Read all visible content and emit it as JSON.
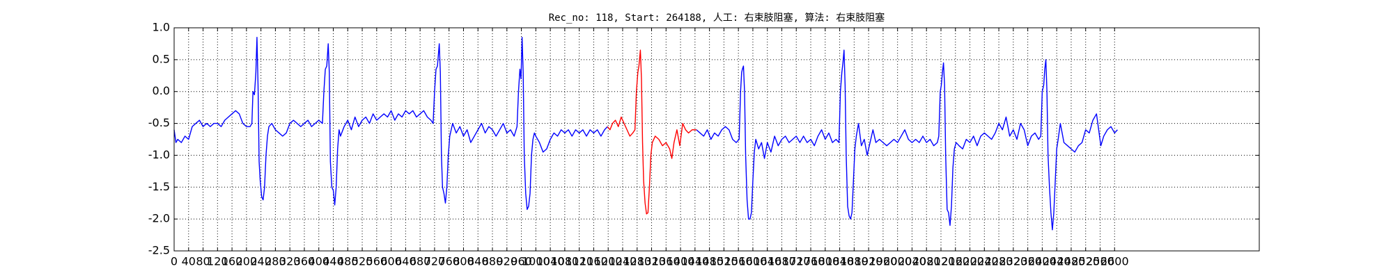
{
  "chart_data": {
    "type": "line",
    "title": "Rec_no: 118, Start: 264188, 人工: 右束肢阻塞, 算法: 右束肢阻塞",
    "xlim": [
      0,
      3000
    ],
    "xticks": [
      0,
      40,
      80,
      120,
      160,
      200,
      240,
      280,
      320,
      360,
      400,
      440,
      480,
      520,
      560,
      600,
      640,
      680,
      720,
      760,
      800,
      840,
      880,
      920,
      960,
      1000,
      1040,
      1080,
      1120,
      1160,
      1200,
      1240,
      1280,
      1320,
      1360,
      1400,
      1440,
      1480,
      1520,
      1560,
      1600,
      1640,
      1680,
      1720,
      1760,
      1800,
      1840,
      1880,
      1920,
      1960,
      2000,
      2040,
      2080,
      2120,
      2160,
      2200,
      2240,
      2280,
      2320,
      2360,
      2400,
      2440,
      2480,
      2520,
      2560,
      2600
    ],
    "ylim": [
      -2.5,
      1.0
    ],
    "yticks": [
      {
        "value": -2.5,
        "label": "-2.5"
      },
      {
        "value": -2,
        "label": "-2.0"
      },
      {
        "value": -1.5,
        "label": "-1.5"
      },
      {
        "value": -1,
        "label": "-1.0"
      },
      {
        "value": -0.5,
        "label": "-0.5"
      },
      {
        "value": 0,
        "label": "0.0"
      },
      {
        "value": 0.5,
        "label": "0.5"
      },
      {
        "value": 1,
        "label": "1.0"
      }
    ],
    "grid": true,
    "series": [
      {
        "color": "#0000ff",
        "x": [
          0,
          5,
          10,
          20,
          30,
          40,
          50,
          60,
          70,
          80,
          90,
          100,
          110,
          120,
          130,
          140,
          150,
          160,
          170,
          180,
          190,
          200,
          210,
          215,
          218,
          222,
          226,
          229,
          232,
          235,
          238,
          242,
          246,
          250,
          254,
          258,
          262,
          270,
          280,
          290,
          300,
          310,
          320,
          330,
          340,
          350,
          360,
          370,
          380,
          390,
          400,
          410,
          414,
          418,
          422,
          426,
          429,
          432,
          436,
          440,
          444,
          448,
          452,
          456,
          460,
          470,
          480,
          490,
          500,
          510,
          520,
          530,
          540,
          550,
          560,
          570,
          580,
          590,
          600,
          610,
          620,
          630,
          640,
          650,
          660,
          670,
          680,
          690,
          700,
          710,
          716,
          720,
          724,
          728,
          733,
          736,
          739,
          742,
          746,
          750,
          754,
          758,
          762,
          766,
          770,
          780,
          790,
          800,
          810,
          820,
          830,
          840,
          850,
          860,
          870,
          880,
          890,
          900,
          910,
          920,
          930,
          940,
          948,
          952,
          956,
          959,
          962,
          965,
          968,
          972,
          976,
          980,
          984,
          988,
          992,
          996,
          1000,
          1010,
          1020,
          1030,
          1040,
          1050,
          1060,
          1070,
          1080,
          1090,
          1100,
          1110,
          1120,
          1130,
          1140,
          1150,
          1160,
          1170,
          1180,
          1190,
          1198,
          1300,
          1444,
          1454,
          1464,
          1474,
          1484,
          1494,
          1504,
          1514,
          1524,
          1534,
          1544,
          1554,
          1562,
          1566,
          1569,
          1571,
          1574,
          1577,
          1580,
          1584,
          1588,
          1592,
          1596,
          1600,
          1604,
          1608,
          1616,
          1624,
          1632,
          1640,
          1650,
          1660,
          1670,
          1680,
          1690,
          1700,
          1710,
          1720,
          1730,
          1740,
          1750,
          1760,
          1770,
          1780,
          1790,
          1800,
          1810,
          1820,
          1830,
          1838,
          1842,
          1846,
          1849,
          1852,
          1855,
          1858,
          1862,
          1866,
          1870,
          1874,
          1878,
          1882,
          1886,
          1892,
          1900,
          1908,
          1916,
          1924,
          1932,
          1940,
          1950,
          1960,
          1970,
          1980,
          1990,
          2000,
          2010,
          2020,
          2030,
          2040,
          2050,
          2060,
          2070,
          2080,
          2090,
          2100,
          2110,
          2114,
          2118,
          2121,
          2124,
          2127,
          2130,
          2133,
          2137,
          2141,
          2145,
          2149,
          2153,
          2157,
          2162,
          2170,
          2180,
          2190,
          2200,
          2210,
          2220,
          2230,
          2240,
          2250,
          2260,
          2270,
          2280,
          2290,
          2300,
          2310,
          2320,
          2330,
          2340,
          2350,
          2360,
          2370,
          2380,
          2390,
          2396,
          2400,
          2404,
          2407,
          2410,
          2413,
          2416,
          2420,
          2424,
          2428,
          2432,
          2436,
          2440,
          2444,
          2450,
          2460,
          2470,
          2480,
          2490,
          2500,
          2510,
          2520,
          2530,
          2540,
          2550,
          2556,
          2562,
          2570,
          2580,
          2590,
          2600,
          2608
        ],
        "values": [
          -0.6,
          -0.8,
          -0.75,
          -0.8,
          -0.7,
          -0.75,
          -0.55,
          -0.5,
          -0.45,
          -0.55,
          -0.5,
          -0.55,
          -0.5,
          -0.5,
          -0.55,
          -0.45,
          -0.4,
          -0.35,
          -0.3,
          -0.35,
          -0.5,
          -0.55,
          -0.55,
          -0.5,
          0.0,
          -0.05,
          0.3,
          0.85,
          0.1,
          -1.1,
          -1.4,
          -1.65,
          -1.7,
          -1.5,
          -1.0,
          -0.7,
          -0.55,
          -0.5,
          -0.6,
          -0.65,
          -0.7,
          -0.65,
          -0.5,
          -0.45,
          -0.5,
          -0.55,
          -0.5,
          -0.45,
          -0.55,
          -0.5,
          -0.45,
          -0.5,
          0.0,
          0.35,
          0.4,
          0.75,
          0.3,
          -1.1,
          -1.5,
          -1.55,
          -1.78,
          -1.5,
          -0.9,
          -0.6,
          -0.7,
          -0.55,
          -0.45,
          -0.6,
          -0.4,
          -0.55,
          -0.45,
          -0.4,
          -0.5,
          -0.35,
          -0.45,
          -0.4,
          -0.35,
          -0.4,
          -0.3,
          -0.45,
          -0.35,
          -0.4,
          -0.3,
          -0.35,
          -0.3,
          -0.4,
          -0.35,
          -0.3,
          -0.4,
          -0.45,
          -0.5,
          0.0,
          0.35,
          0.4,
          0.75,
          0.3,
          -1.0,
          -1.5,
          -1.6,
          -1.75,
          -1.5,
          -1.0,
          -0.7,
          -0.6,
          -0.5,
          -0.65,
          -0.55,
          -0.7,
          -0.6,
          -0.8,
          -0.7,
          -0.6,
          -0.5,
          -0.65,
          -0.55,
          -0.6,
          -0.7,
          -0.6,
          -0.5,
          -0.65,
          -0.6,
          -0.7,
          -0.55,
          0.0,
          0.35,
          0.2,
          0.85,
          0.3,
          -1.0,
          -1.6,
          -1.85,
          -1.8,
          -1.6,
          -1.0,
          -0.75,
          -0.65,
          -0.7,
          -0.8,
          -0.95,
          -0.9,
          -0.75,
          -0.65,
          -0.7,
          -0.6,
          -0.65,
          -0.6,
          -0.7,
          -0.6,
          -0.65,
          -0.6,
          -0.7,
          -0.6,
          -0.65,
          -0.6,
          -0.7,
          -0.6,
          -0.55,
          null,
          -0.6,
          -0.65,
          -0.7,
          -0.6,
          -0.75,
          -0.65,
          -0.7,
          -0.6,
          -0.55,
          -0.6,
          -0.75,
          -0.8,
          -0.75,
          0.0,
          0.3,
          0.35,
          0.4,
          0.0,
          -1.0,
          -1.7,
          -2.0,
          -2.0,
          -1.9,
          -1.4,
          -0.95,
          -0.75,
          -0.9,
          -0.8,
          -1.05,
          -0.8,
          -0.95,
          -0.7,
          -0.85,
          -0.75,
          -0.7,
          -0.8,
          -0.75,
          -0.7,
          -0.8,
          -0.7,
          -0.8,
          -0.75,
          -0.85,
          -0.7,
          -0.6,
          -0.75,
          -0.65,
          -0.8,
          -0.75,
          -0.8,
          0.0,
          0.3,
          0.45,
          0.65,
          0.1,
          -1.0,
          -1.8,
          -1.95,
          -2.0,
          -1.9,
          -1.4,
          -0.9,
          -0.7,
          -0.5,
          -0.85,
          -0.75,
          -1.0,
          -0.8,
          -0.6,
          -0.8,
          -0.75,
          -0.8,
          -0.85,
          -0.8,
          -0.75,
          -0.8,
          -0.7,
          -0.6,
          -0.75,
          -0.8,
          -0.75,
          -0.8,
          -0.7,
          -0.8,
          -0.75,
          -0.85,
          -0.8,
          -0.7,
          0.0,
          0.1,
          0.3,
          0.45,
          0.1,
          -1.0,
          -1.85,
          -1.9,
          -2.1,
          -1.8,
          -1.2,
          -0.9,
          -0.8,
          -0.85,
          -0.9,
          -0.75,
          -0.8,
          -0.7,
          -0.85,
          -0.7,
          -0.65,
          -0.7,
          -0.75,
          -0.65,
          -0.5,
          -0.6,
          -0.4,
          -0.7,
          -0.6,
          -0.75,
          -0.5,
          -0.6,
          -0.85,
          -0.7,
          -0.65,
          -0.75,
          -0.7,
          0.0,
          0.1,
          0.35,
          0.5,
          0.0,
          -1.0,
          -1.5,
          -1.9,
          -2.17,
          -1.9,
          -1.4,
          -0.9,
          -0.75,
          -0.5,
          -0.8,
          -0.85,
          -0.9,
          -0.95,
          -0.85,
          -0.8,
          -0.6,
          -0.65,
          -0.45,
          -0.35,
          -0.6,
          -0.85,
          -0.7,
          -0.6,
          -0.55,
          -0.65,
          -0.6
        ]
      },
      {
        "color": "#ff0000",
        "x": [
          1198,
          1205,
          1212,
          1220,
          1228,
          1236,
          1244,
          1252,
          1260,
          1268,
          1274,
          1278,
          1282,
          1285,
          1289,
          1292,
          1295,
          1298,
          1302,
          1306,
          1310,
          1314,
          1318,
          1322,
          1330,
          1340,
          1350,
          1360,
          1370,
          1376,
          1382,
          1390,
          1398,
          1406,
          1414,
          1422,
          1432,
          1444
        ],
        "values": [
          -0.55,
          -0.6,
          -0.5,
          -0.45,
          -0.55,
          -0.4,
          -0.5,
          -0.6,
          -0.7,
          -0.65,
          -0.6,
          0.0,
          0.3,
          0.4,
          0.65,
          0.2,
          -0.8,
          -1.4,
          -1.75,
          -1.92,
          -1.9,
          -1.5,
          -1.0,
          -0.8,
          -0.7,
          -0.75,
          -0.85,
          -0.8,
          -0.9,
          -1.05,
          -0.8,
          -0.6,
          -0.85,
          -0.5,
          -0.6,
          -0.65,
          -0.6,
          -0.6
        ]
      }
    ]
  }
}
